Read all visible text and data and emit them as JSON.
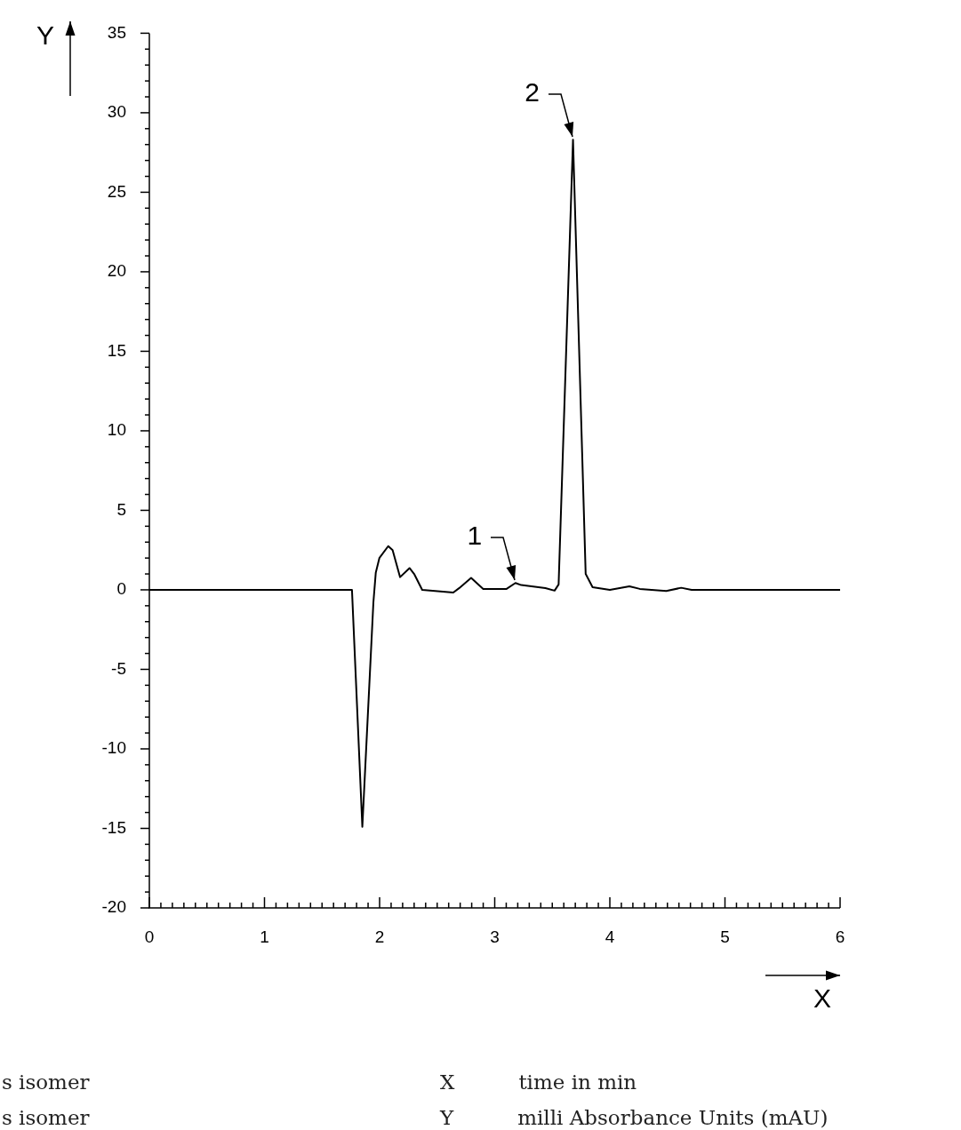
{
  "chart_data": {
    "type": "line",
    "xlabel": "X",
    "ylabel": "Y",
    "x": [
      0,
      1.76,
      1.85,
      1.946,
      1.967,
      1.998,
      2.075,
      2.113,
      2.178,
      2.26,
      2.3,
      2.37,
      2.64,
      2.69,
      2.795,
      2.9,
      3.1,
      3.18,
      3.23,
      3.44,
      3.52,
      3.555,
      3.68,
      3.79,
      3.85,
      4.0,
      4.17,
      4.26,
      4.49,
      4.62,
      4.71,
      6
    ],
    "series": [
      {
        "color": "#000000",
        "values": [
          0,
          0,
          -14.9,
          -0.8,
          1.09,
          2.0,
          2.75,
          2.5,
          0.8,
          1.37,
          1.0,
          0,
          -0.17,
          0.1,
          0.75,
          0.05,
          0.05,
          0.43,
          0.3,
          0.11,
          -0.05,
          0.34,
          28.3,
          1.0,
          0.17,
          0,
          0.22,
          0.06,
          -0.07,
          0.13,
          0,
          0
        ]
      }
    ],
    "xlim": [
      0,
      6
    ],
    "xticks": [
      0,
      {
        "value": 0.1,
        "label": null
      },
      {
        "value": 0.2,
        "label": null
      },
      {
        "value": 0.3,
        "label": null
      },
      {
        "value": 0.4,
        "label": null
      },
      {
        "value": 0.5,
        "label": null
      },
      {
        "value": 0.6,
        "label": null
      },
      {
        "value": 0.7,
        "label": null
      },
      {
        "value": 0.8,
        "label": null
      },
      {
        "value": 0.9,
        "label": null
      },
      1,
      {
        "value": 1.1,
        "label": null
      },
      {
        "value": 1.2,
        "label": null
      },
      {
        "value": 1.3,
        "label": null
      },
      {
        "value": 1.4,
        "label": null
      },
      {
        "value": 1.5,
        "label": null
      },
      {
        "value": 1.6,
        "label": null
      },
      {
        "value": 1.7,
        "label": null
      },
      {
        "value": 1.8,
        "label": null
      },
      {
        "value": 1.9,
        "label": null
      },
      2,
      {
        "value": 2.1,
        "label": null
      },
      {
        "value": 2.2,
        "label": null
      },
      {
        "value": 2.3,
        "label": null
      },
      {
        "value": 2.4,
        "label": null
      },
      {
        "value": 2.5,
        "label": null
      },
      {
        "value": 2.6,
        "label": null
      },
      {
        "value": 2.7,
        "label": null
      },
      {
        "value": 2.8,
        "label": null
      },
      {
        "value": 2.9,
        "label": null
      },
      3,
      {
        "value": 3.1,
        "label": null
      },
      {
        "value": 3.2,
        "label": null
      },
      {
        "value": 3.3,
        "label": null
      },
      {
        "value": 3.4,
        "label": null
      },
      {
        "value": 3.5,
        "label": null
      },
      {
        "value": 3.6,
        "label": null
      },
      {
        "value": 3.7,
        "label": null
      },
      {
        "value": 3.8,
        "label": null
      },
      {
        "value": 3.9,
        "label": null
      },
      4,
      {
        "value": 4.1,
        "label": null
      },
      {
        "value": 4.2,
        "label": null
      },
      {
        "value": 4.3,
        "label": null
      },
      {
        "value": 4.4,
        "label": null
      },
      {
        "value": 4.5,
        "label": null
      },
      {
        "value": 4.6,
        "label": null
      },
      {
        "value": 4.7,
        "label": null
      },
      {
        "value": 4.8,
        "label": null
      },
      {
        "value": 4.9,
        "label": null
      },
      5,
      {
        "value": 5.1,
        "label": null
      },
      {
        "value": 5.2,
        "label": null
      },
      {
        "value": 5.3,
        "label": null
      },
      {
        "value": 5.4,
        "label": null
      },
      {
        "value": 5.5,
        "label": null
      },
      {
        "value": 5.6,
        "label": null
      },
      {
        "value": 5.7,
        "label": null
      },
      {
        "value": 5.8,
        "label": null
      },
      {
        "value": 5.9,
        "label": null
      },
      6
    ],
    "ylim": [
      -20,
      35
    ],
    "yticks": [
      -20,
      {
        "value": -19,
        "label": null
      },
      {
        "value": -18,
        "label": null
      },
      {
        "value": -17,
        "label": null
      },
      {
        "value": -16,
        "label": null
      },
      -15,
      {
        "value": -14,
        "label": null
      },
      {
        "value": -13,
        "label": null
      },
      {
        "value": -12,
        "label": null
      },
      {
        "value": -11,
        "label": null
      },
      -10,
      {
        "value": -9,
        "label": null
      },
      {
        "value": -8,
        "label": null
      },
      {
        "value": -7,
        "label": null
      },
      {
        "value": -6,
        "label": null
      },
      -5,
      {
        "value": -4,
        "label": null
      },
      {
        "value": -3,
        "label": null
      },
      {
        "value": -2,
        "label": null
      },
      {
        "value": -1,
        "label": null
      },
      0,
      {
        "value": 1,
        "label": null
      },
      {
        "value": 2,
        "label": null
      },
      {
        "value": 3,
        "label": null
      },
      {
        "value": 4,
        "label": null
      },
      5,
      {
        "value": 6,
        "label": null
      },
      {
        "value": 7,
        "label": null
      },
      {
        "value": 8,
        "label": null
      },
      {
        "value": 9,
        "label": null
      },
      10,
      {
        "value": 11,
        "label": null
      },
      {
        "value": 12,
        "label": null
      },
      {
        "value": 13,
        "label": null
      },
      {
        "value": 14,
        "label": null
      },
      15,
      {
        "value": 16,
        "label": null
      },
      {
        "value": 17,
        "label": null
      },
      {
        "value": 18,
        "label": null
      },
      {
        "value": 19,
        "label": null
      },
      20,
      {
        "value": 21,
        "label": null
      },
      {
        "value": 22,
        "label": null
      },
      {
        "value": 23,
        "label": null
      },
      {
        "value": 24,
        "label": null
      },
      25,
      {
        "value": 26,
        "label": null
      },
      {
        "value": 27,
        "label": null
      },
      {
        "value": 28,
        "label": null
      },
      {
        "value": 29,
        "label": null
      },
      30,
      {
        "value": 31,
        "label": null
      },
      {
        "value": 32,
        "label": null
      },
      {
        "value": 33,
        "label": null
      },
      {
        "value": 34,
        "label": null
      },
      35
    ],
    "grid": false,
    "legend": false,
    "marker": "none",
    "line_style": "solid",
    "annotations": [
      {
        "text": "1",
        "x": 3.18,
        "y": 0.43
      },
      {
        "text": "2",
        "x": 3.68,
        "y": 28.3
      },
      "s isomer",
      "s isomer",
      "X time in min",
      "Y milli Absorbance Units (mAU)"
    ]
  }
}
